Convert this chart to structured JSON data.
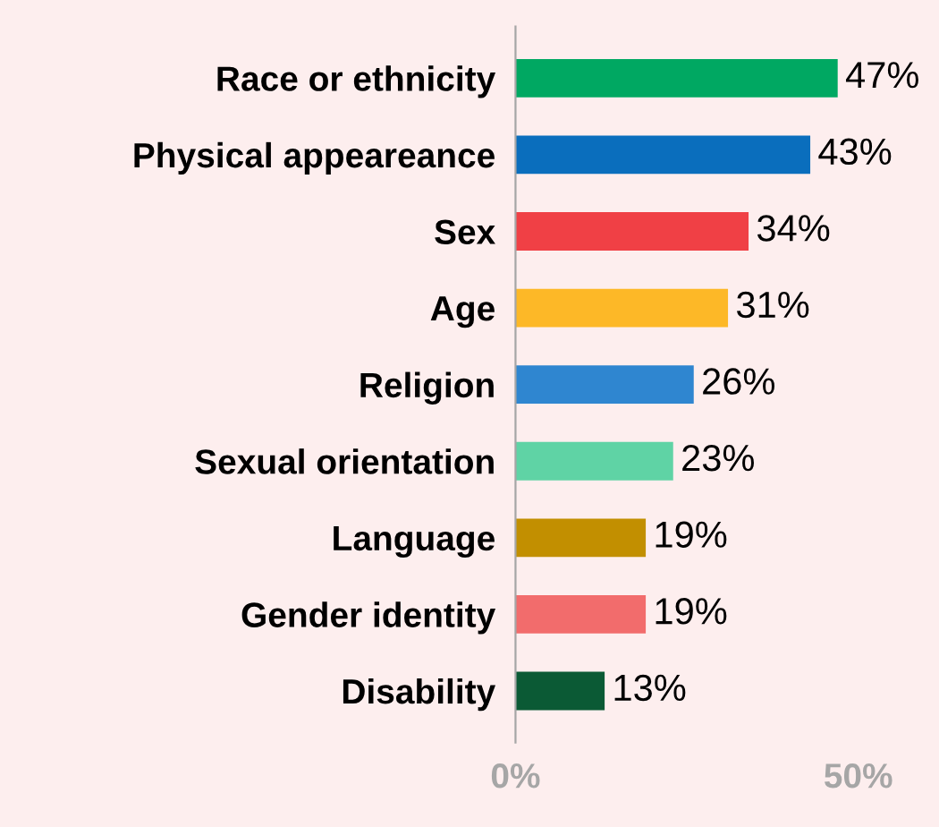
{
  "chart_data": {
    "type": "bar",
    "orientation": "horizontal",
    "categories": [
      "Race or ethnicity",
      "Physical appeareance",
      "Sex",
      "Age",
      "Religion",
      "Sexual orientation",
      "Language",
      "Gender identity",
      "Disability"
    ],
    "values": [
      47,
      43,
      34,
      31,
      26,
      23,
      19,
      19,
      13
    ],
    "colors": [
      "#00a862",
      "#0a6ebd",
      "#f04045",
      "#fdb827",
      "#2f86d0",
      "#5fd3a5",
      "#c28f00",
      "#f26c6c",
      "#0b5a35"
    ],
    "value_labels": [
      "47%",
      "43%",
      "34%",
      "31%",
      "26%",
      "23%",
      "19%",
      "19%",
      "13%"
    ],
    "xlim": [
      0,
      50
    ],
    "xticks": [
      {
        "value": 0,
        "label": "0%"
      },
      {
        "value": 50,
        "label": "50%"
      }
    ],
    "grid": false,
    "legend": false
  }
}
